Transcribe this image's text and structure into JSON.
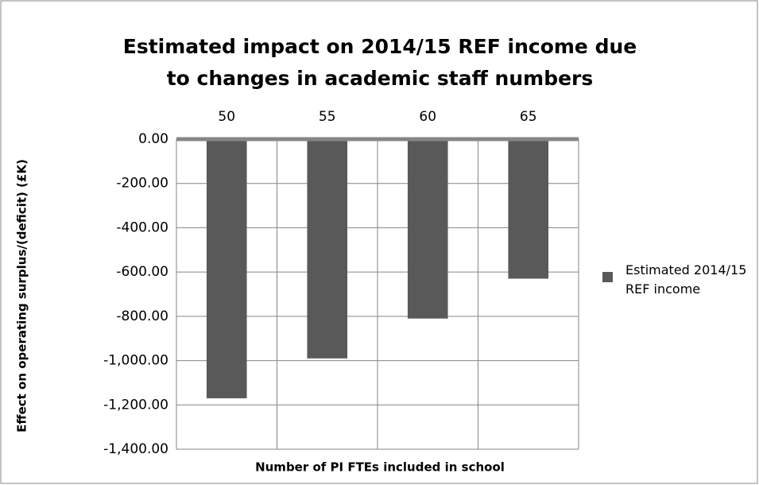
{
  "chart_data": {
    "type": "bar",
    "title": "Estimated impact on 2014/15 REF income due to changes in academic staff numbers",
    "x_label": "Number of PI FTEs included in school",
    "y_label": "Effect on operating surplus/(deficit) (£K)",
    "categories": [
      "50",
      "55",
      "60",
      "65"
    ],
    "series": [
      {
        "name": "Estimated 2014/15 REF income",
        "color": "#595959",
        "values": [
          -1170,
          -990,
          -810,
          -630
        ]
      }
    ],
    "ylim": [
      -1400,
      0
    ],
    "yticks": [
      {
        "value": 0,
        "label": "0.00"
      },
      {
        "value": -200,
        "label": "-200.00"
      },
      {
        "value": -400,
        "label": "-400.00"
      },
      {
        "value": -600,
        "label": "-600.00"
      },
      {
        "value": -800,
        "label": "-800.00"
      },
      {
        "value": -1000,
        "label": "-1,000.00"
      },
      {
        "value": -1200,
        "label": "-1,200.00"
      },
      {
        "value": -1400,
        "label": "-1,400.00"
      }
    ],
    "grid": true,
    "legend": "right"
  }
}
